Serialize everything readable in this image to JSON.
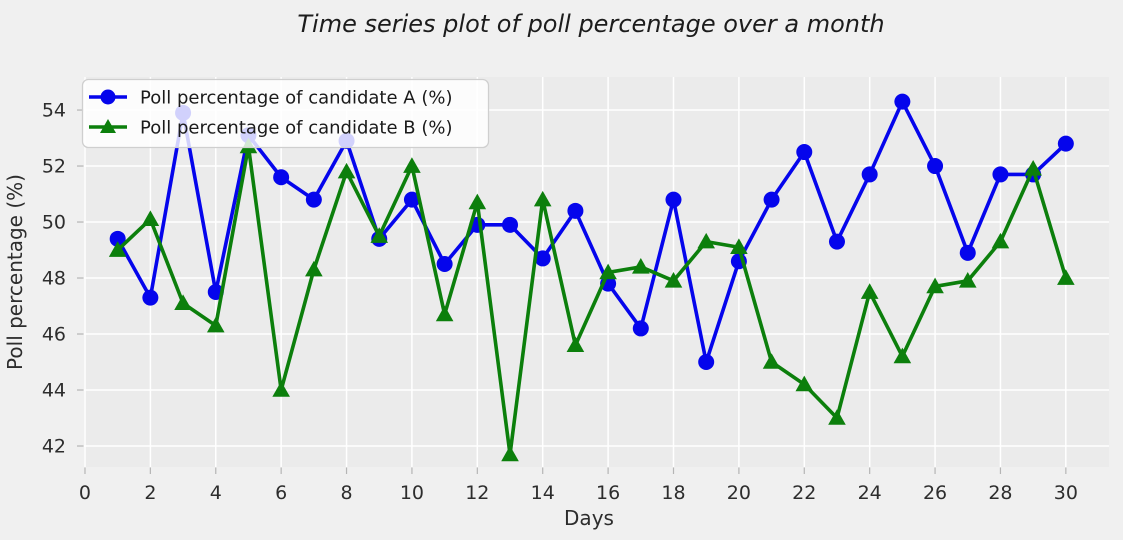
{
  "figure": {
    "colors": {
      "figure_bg": "#f0f0f0",
      "plot_bg": "#ebebeb",
      "grid": "#ffffff",
      "tick_mark": "#b5b5b5",
      "tick_label": "#2d2d2d",
      "axis_label": "#2d2d2d",
      "title": "#1c1c1c",
      "legend_bg": "#ffffff",
      "legend_border": "#cfcfcf",
      "series_a": "#0505ec",
      "series_b": "#0c7f0c"
    }
  },
  "chart_data": {
    "type": "line",
    "title": "Time series plot of poll percentage over a month",
    "xlabel": "Days",
    "ylabel": "Poll percentage (%)",
    "x": [
      1,
      2,
      3,
      4,
      5,
      6,
      7,
      8,
      9,
      10,
      11,
      12,
      13,
      14,
      15,
      16,
      17,
      18,
      19,
      20,
      21,
      22,
      23,
      24,
      25,
      26,
      27,
      28,
      29,
      30
    ],
    "series": [
      {
        "name": "Poll percentage of candidate A (%)",
        "color": "#0505ec",
        "marker": "circle",
        "values": [
          49.4,
          47.3,
          53.9,
          47.5,
          53.1,
          51.6,
          50.8,
          52.9,
          49.4,
          50.8,
          48.5,
          49.9,
          49.9,
          48.7,
          50.4,
          47.8,
          46.2,
          50.8,
          45.0,
          48.6,
          50.8,
          52.5,
          49.3,
          51.7,
          54.3,
          52.0,
          48.9,
          51.7,
          51.7,
          52.8
        ]
      },
      {
        "name": "Poll percentage of candidate B (%)",
        "color": "#0c7f0c",
        "marker": "triangle",
        "values": [
          49.0,
          50.1,
          47.1,
          46.3,
          52.7,
          44.0,
          48.3,
          51.8,
          49.5,
          52.0,
          46.7,
          50.7,
          41.7,
          50.8,
          45.6,
          48.2,
          48.4,
          47.9,
          49.3,
          49.1,
          45.0,
          44.2,
          43.0,
          47.5,
          45.2,
          47.7,
          47.9,
          49.3,
          51.9,
          48.0
        ]
      }
    ],
    "x_ticks": [
      0,
      2,
      4,
      6,
      8,
      10,
      12,
      14,
      16,
      18,
      20,
      22,
      24,
      26,
      28,
      30
    ],
    "y_ticks": [
      42,
      44,
      46,
      48,
      50,
      52,
      54
    ],
    "xlim": [
      -0.03,
      31.32
    ],
    "ylim": [
      41.25,
      55.18
    ],
    "grid": true,
    "legend_position": "upper left"
  }
}
